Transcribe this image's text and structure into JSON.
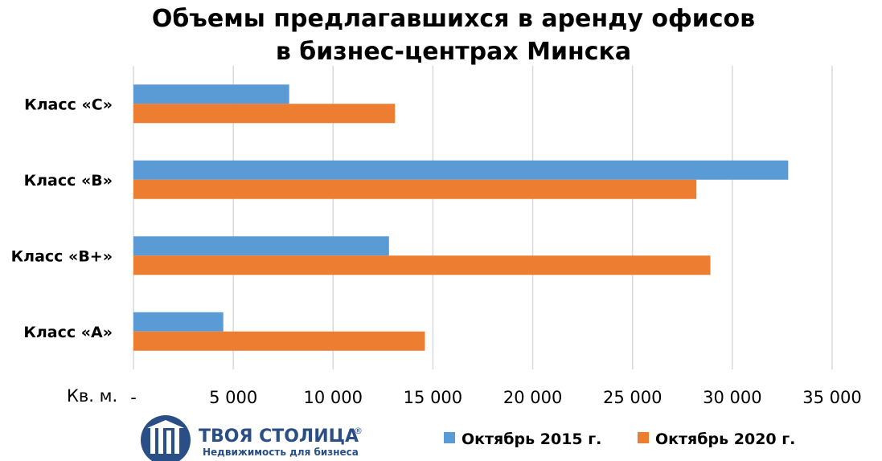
{
  "chart_data": {
    "type": "bar",
    "orientation": "horizontal",
    "title": [
      "Объемы предлагавшихся в аренду офисов",
      "в бизнес-центрах Минска"
    ],
    "xlabel": "Кв. м.",
    "categories": [
      "Класс «С»",
      "Класс «В»",
      "Класс «В+»",
      "Класс «А»"
    ],
    "series": [
      {
        "name": "Октябрь 2015 г.",
        "color": "#5b9bd5",
        "values": [
          7800,
          32800,
          12800,
          4500
        ]
      },
      {
        "name": "Октябрь 2020 г.",
        "color": "#ed7d31",
        "values": [
          13100,
          28200,
          28900,
          14600
        ]
      }
    ],
    "xlim": [
      0,
      35000
    ],
    "xticks": [
      "-",
      "5 000",
      "10 000",
      "15 000",
      "20 000",
      "25 000",
      "30 000",
      "35 000"
    ],
    "grid": "vertical",
    "legend_position": "bottom-right"
  },
  "logo": {
    "name": "ТВОЯ СТОЛИЦА",
    "registered": "®",
    "tagline": "Недвижимость для бизнеса",
    "color": "#2a4e86"
  }
}
